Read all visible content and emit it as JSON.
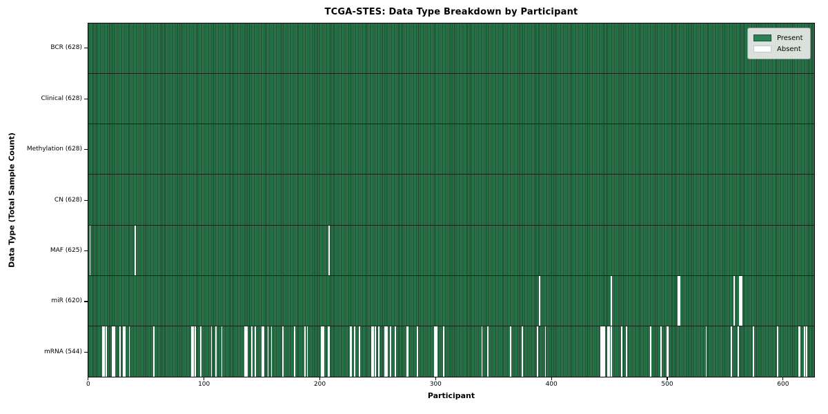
{
  "chart_data": {
    "type": "heatmap",
    "title": "TCGA-STES: Data Type Breakdown by Participant",
    "xlabel": "Participant",
    "ylabel": "Data Type (Total Sample Count)",
    "x_ticks": [
      0,
      100,
      200,
      300,
      400,
      500,
      600
    ],
    "x_range": [
      0,
      628
    ],
    "n_participants": 628,
    "grid": false,
    "legend_position": "upper right",
    "colors": {
      "present_fill": "#2e7d50",
      "present_edge": "#173f29",
      "absent_fill": "#ffffff",
      "legend_present": "#2e8057"
    },
    "legend": [
      {
        "label": "Present",
        "color": "#2e8057"
      },
      {
        "label": "Absent",
        "color": "#ffffff"
      }
    ],
    "rows": [
      {
        "label": "BCR (628)",
        "data_type": "BCR",
        "present_count": 628,
        "absent_participants": []
      },
      {
        "label": "Clinical (628)",
        "data_type": "Clinical",
        "present_count": 628,
        "absent_participants": []
      },
      {
        "label": "Methylation (628)",
        "data_type": "Methylation",
        "present_count": 628,
        "absent_participants": []
      },
      {
        "label": "CN (628)",
        "data_type": "CN",
        "present_count": 628,
        "absent_participants": []
      },
      {
        "label": "MAF (625)",
        "data_type": "MAF",
        "present_count": 625,
        "absent_participants": [
          1,
          40,
          208
        ]
      },
      {
        "label": "miR (620)",
        "data_type": "miR",
        "present_count": 620,
        "absent_participants": [
          390,
          452,
          510,
          511,
          558,
          563,
          564,
          565
        ]
      },
      {
        "label": "mRNA (544)",
        "data_type": "mRNA",
        "present_count": 544,
        "absent_participants": [
          12,
          13,
          15,
          20,
          21,
          22,
          27,
          30,
          31,
          35,
          56,
          89,
          90,
          92,
          97,
          106,
          110,
          115,
          135,
          136,
          137,
          141,
          144,
          150,
          151,
          155,
          158,
          168,
          178,
          187,
          189,
          201,
          202,
          203,
          207,
          208,
          226,
          227,
          230,
          234,
          245,
          246,
          248,
          251,
          256,
          257,
          258,
          261,
          265,
          275,
          276,
          284,
          299,
          300,
          301,
          307,
          340,
          345,
          365,
          375,
          388,
          395,
          443,
          444,
          445,
          446,
          449,
          450,
          452,
          461,
          465,
          486,
          495,
          500,
          501,
          534,
          556,
          562,
          575,
          596,
          614,
          615,
          619,
          621
        ]
      }
    ]
  }
}
